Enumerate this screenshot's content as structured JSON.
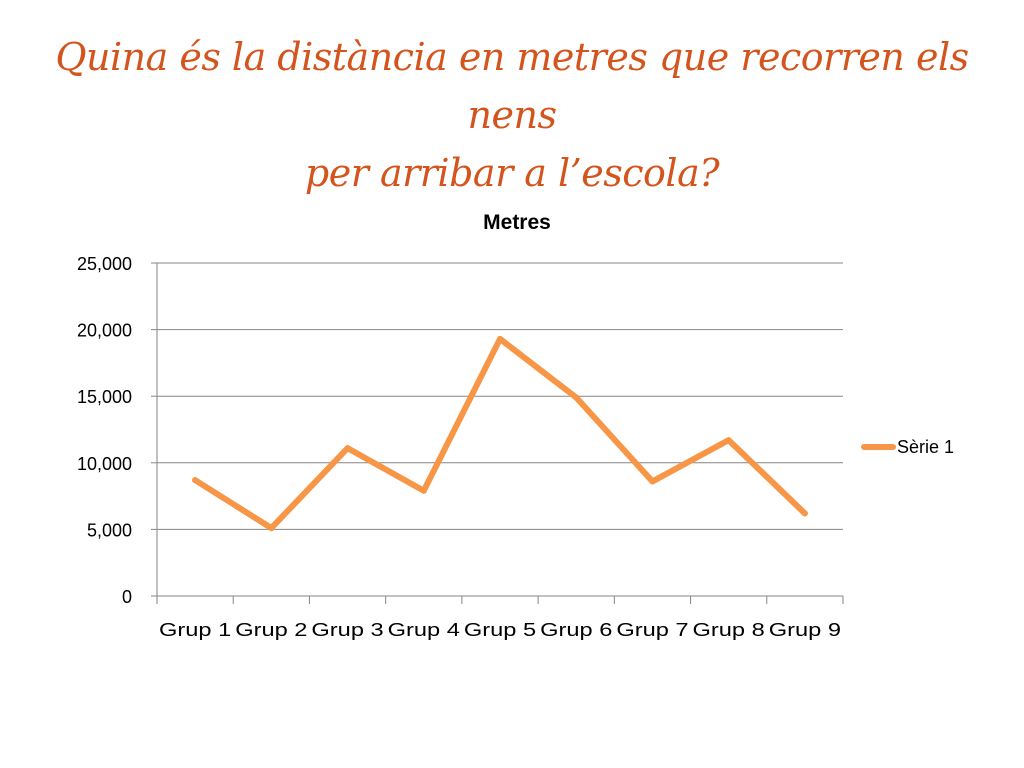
{
  "slide": {
    "title_line1": "Quina és la distància en metres que recorren els nens",
    "title_line2": "per arribar a l’escola?",
    "title_color": "#d4541e"
  },
  "chart_data": {
    "type": "line",
    "title": "Metres",
    "xlabel": "",
    "ylabel": "",
    "categories": [
      "Grup 1",
      "Grup 2",
      "Grup 3",
      "Grup 4",
      "Grup 5",
      "Grup 6",
      "Grup 7",
      "Grup 8",
      "Grup 9"
    ],
    "series": [
      {
        "name": "Sèrie 1",
        "color": "#f79646",
        "values": [
          8700,
          5100,
          11100,
          7900,
          19300,
          14900,
          8600,
          11700,
          6200
        ]
      }
    ],
    "ylim": [
      0,
      25000
    ],
    "yticks": [
      0,
      5000,
      10000,
      15000,
      20000,
      25000
    ],
    "ytick_labels": [
      "0",
      "5,000",
      "10,000",
      "15,000",
      "20,000",
      "25,000"
    ],
    "grid": true,
    "legend_position": "right"
  }
}
